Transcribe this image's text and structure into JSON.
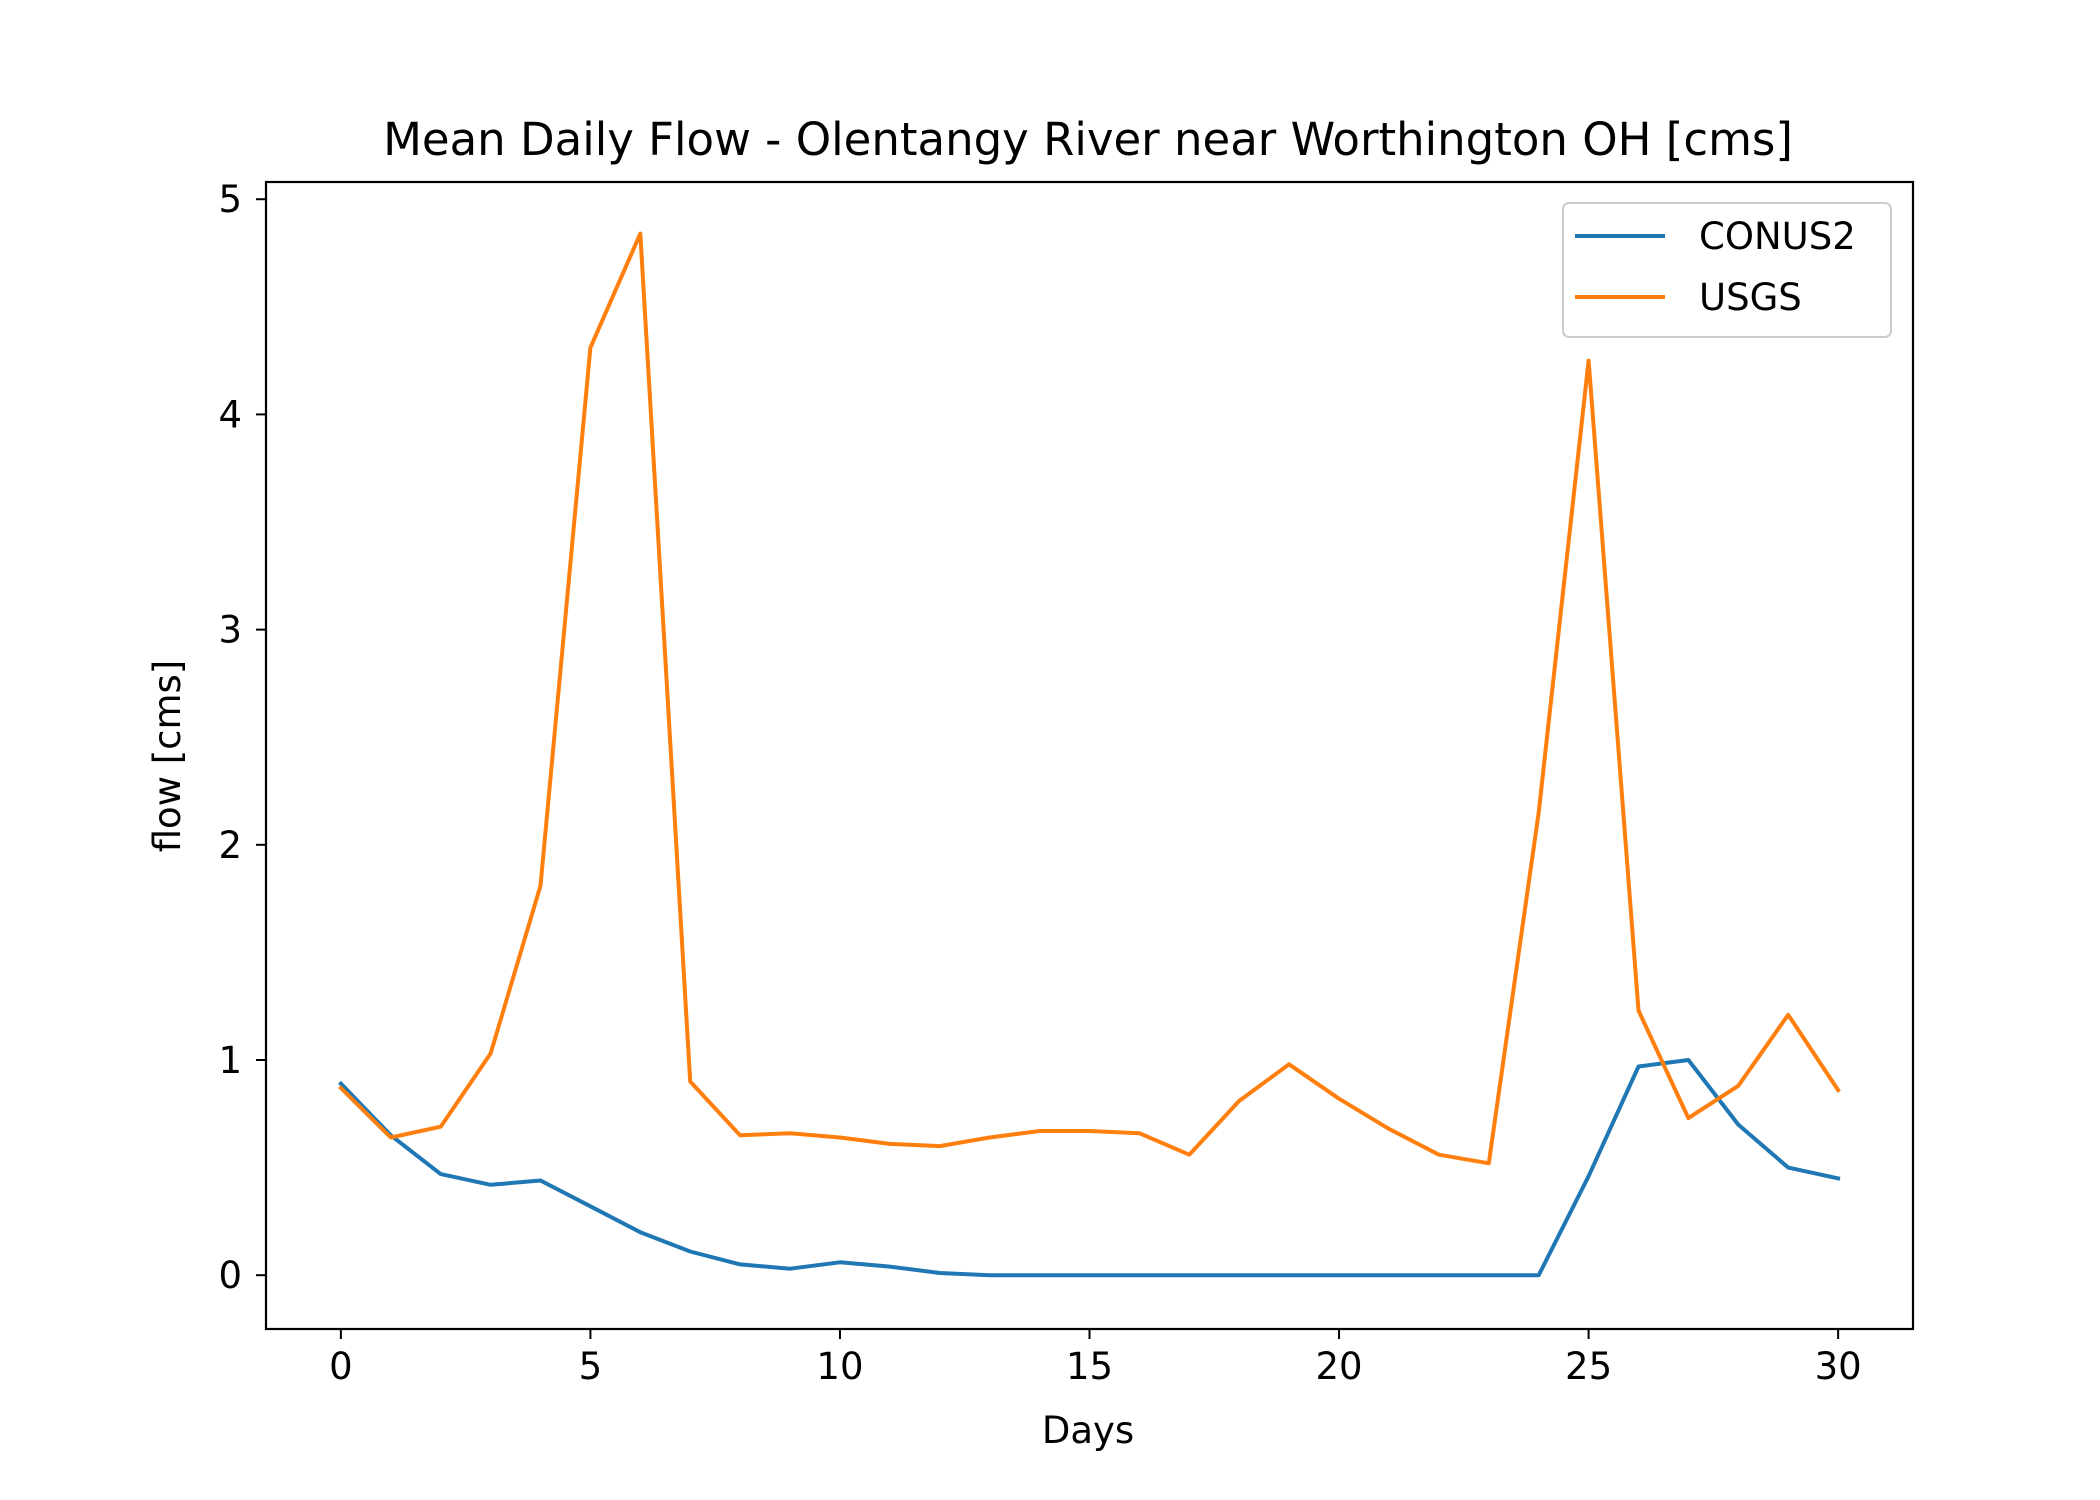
{
  "chart_data": {
    "type": "line",
    "title": "Mean Daily Flow - Olentangy River near Worthington OH [cms]",
    "xlabel": "Days",
    "ylabel": "flow [cms]",
    "xlim": [
      -1.5,
      31.5
    ],
    "ylim": [
      -0.25,
      5.08
    ],
    "xticks": [
      0,
      5,
      10,
      15,
      20,
      25,
      30
    ],
    "yticks": [
      0,
      1,
      2,
      3,
      4,
      5
    ],
    "grid": false,
    "legend_placement": "upper right",
    "x": [
      0,
      1,
      2,
      3,
      4,
      5,
      6,
      7,
      8,
      9,
      10,
      11,
      12,
      13,
      14,
      15,
      16,
      17,
      18,
      19,
      20,
      21,
      22,
      23,
      24,
      25,
      26,
      27,
      28,
      29,
      30
    ],
    "series": [
      {
        "name": "CONUS2",
        "color": "#1f77b4",
        "values": [
          0.89,
          0.65,
          0.47,
          0.42,
          0.44,
          0.32,
          0.2,
          0.11,
          0.05,
          0.03,
          0.06,
          0.04,
          0.01,
          0.0,
          0.0,
          0.0,
          0.0,
          0.0,
          0.0,
          0.0,
          0.0,
          0.0,
          0.0,
          0.0,
          0.0,
          0.46,
          0.97,
          1.0,
          0.7,
          0.5,
          0.45
        ]
      },
      {
        "name": "USGS",
        "color": "#ff7f0e",
        "values": [
          0.87,
          0.64,
          0.69,
          1.03,
          1.81,
          4.31,
          4.84,
          0.9,
          0.65,
          0.66,
          0.64,
          0.61,
          0.6,
          0.64,
          0.67,
          0.67,
          0.66,
          0.56,
          0.81,
          0.98,
          0.82,
          0.68,
          0.56,
          0.52,
          2.15,
          4.25,
          1.23,
          0.73,
          0.88,
          1.21,
          0.86
        ]
      }
    ]
  }
}
